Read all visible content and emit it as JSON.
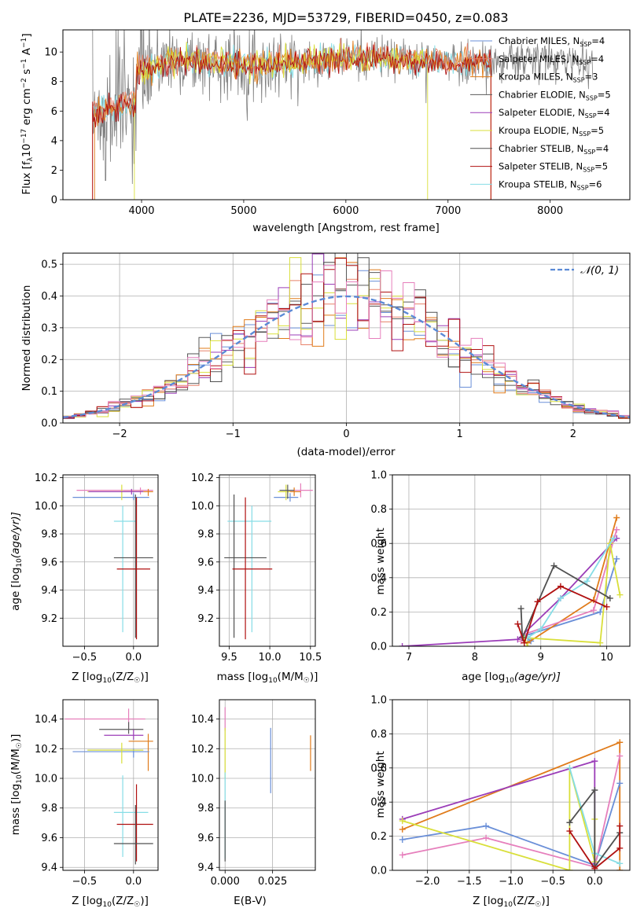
{
  "title": "PLATE=2236, MJD=53729, FIBERID=0450, z=0.083",
  "colors": {
    "chabrier_miles": "#6a8fd8",
    "salpeter_miles": "#e8826a",
    "kroupa_miles": "#e07b1a",
    "chabrier_elodie": "#5a5a5a",
    "salpeter_elodie": "#9b3db8",
    "kroupa_elodie": "#d9df3a",
    "chabrier_stelib": "#505050",
    "salpeter_stelib": "#b01010",
    "kroupa_stelib": "#86dde6",
    "pink": "#e67fbc",
    "normal_curve": "#5b8ad6",
    "data_gray": "#808080"
  },
  "chart_data": [
    {
      "id": "spectrum",
      "type": "line",
      "xlabel": "wavelength [Angstrom, rest frame]",
      "ylabel_main": "Flux [f",
      "ylabel_sub": "λ",
      "ylabel_rest": "10",
      "ylabel_exp1": "−17",
      "ylabel_mid": " erg cm",
      "ylabel_exp2": "−2",
      "ylabel_mid2": " s",
      "ylabel_exp3": "−1",
      "ylabel_end": " A",
      "ylabel_exp4": "−1",
      "ylabel_close": "]",
      "xlim": [
        3230,
        8780
      ],
      "ylim": [
        0,
        11.5
      ],
      "xticks": [
        "4000",
        "5000",
        "6000",
        "7000",
        "8000"
      ],
      "yticks": [
        "0",
        "2",
        "4",
        "6",
        "8",
        "10"
      ],
      "legend": [
        {
          "name": "Chabrier MILES, N",
          "sub": "SSP",
          "eq": "=4",
          "color": "chabrier_miles"
        },
        {
          "name": "Salpeter MILES, N",
          "sub": "SSP",
          "eq": "=4",
          "color": "salpeter_miles"
        },
        {
          "name": "Kroupa MILES, N",
          "sub": "SSP",
          "eq": "=3",
          "color": "kroupa_miles"
        },
        {
          "name": "Chabrier ELODIE, N",
          "sub": "SSP",
          "eq": "=5",
          "color": "chabrier_elodie"
        },
        {
          "name": "Salpeter ELODIE, N",
          "sub": "SSP",
          "eq": "=4",
          "color": "salpeter_elodie"
        },
        {
          "name": "Kroupa ELODIE, N",
          "sub": "SSP",
          "eq": "=5",
          "color": "kroupa_elodie"
        },
        {
          "name": "Chabrier STELIB, N",
          "sub": "SSP",
          "eq": "=4",
          "color": "chabrier_stelib"
        },
        {
          "name": "Salpeter STELIB, N",
          "sub": "SSP",
          "eq": "=5",
          "color": "salpeter_stelib"
        },
        {
          "name": "Kroupa STELIB, N",
          "sub": "SSP",
          "eq": "=6",
          "color": "kroupa_stelib"
        }
      ]
    },
    {
      "id": "residuals",
      "type": "bar",
      "xlabel": "(data-model)/error",
      "ylabel": "Normed distribution",
      "xlim": [
        -2.5,
        2.5
      ],
      "ylim": [
        0,
        0.535
      ],
      "xticks": [
        "−2",
        "−1",
        "0",
        "1",
        "2"
      ],
      "yticks": [
        "0.0",
        "0.1",
        "0.2",
        "0.3",
        "0.4",
        "0.5"
      ],
      "legend_label": "𝒩(0, 1)",
      "bin_width": 0.1
    },
    {
      "id": "age_vs_Z",
      "type": "scatter",
      "xlabel": "Z [log",
      "xlabel_sub": "10",
      "xlabel_rest": "(Z/Z",
      "xlabel_sub2": "☉",
      "xlabel_end": ")]",
      "ylabel": "age  [log",
      "ylabel_sub": "10",
      "ylabel_rest": "(age/yr)]",
      "xlim": [
        -0.72,
        0.25
      ],
      "ylim": [
        9.0,
        10.22
      ],
      "xticks": [
        "−0.5",
        "0.0"
      ],
      "yticks": [
        "9.2",
        "9.4",
        "9.6",
        "9.8",
        "10.0",
        "10.2"
      ]
    },
    {
      "id": "age_vs_mass",
      "type": "scatter",
      "xlabel": "mass [log",
      "xlabel_sub": "10",
      "xlabel_rest": "(M/M",
      "xlabel_sub2": "☉",
      "xlabel_end": ")]",
      "xlim": [
        9.38,
        10.56
      ],
      "ylim": [
        9.0,
        10.22
      ],
      "xticks": [
        "9.5",
        "10.0",
        "10.5"
      ],
      "yticks": [
        "9.2",
        "9.4",
        "9.6",
        "9.8",
        "10.0",
        "10.2"
      ]
    },
    {
      "id": "mass_weight_vs_age",
      "type": "line",
      "xlabel": "age  [log",
      "xlabel_sub": "10",
      "xlabel_rest": "(age/yr)]",
      "ylabel": "mass weight",
      "xlim": [
        6.75,
        10.35
      ],
      "ylim": [
        0,
        1.0
      ],
      "xticks": [
        "7",
        "8",
        "9",
        "10"
      ],
      "yticks": [
        "0.0",
        "0.2",
        "0.4",
        "0.6",
        "0.8",
        "1.0"
      ]
    },
    {
      "id": "mass_vs_Z",
      "type": "scatter",
      "xlabel": "Z [log",
      "xlabel_sub": "10",
      "xlabel_rest": "(Z/Z",
      "xlabel_sub2": "☉",
      "xlabel_end": ")]",
      "ylabel": "mass [log",
      "ylabel_sub": "10",
      "ylabel_rest": "(M/M",
      "ylabel_sub2": "☉",
      "ylabel_end": ")]",
      "xlim": [
        -0.72,
        0.25
      ],
      "ylim": [
        9.38,
        10.53
      ],
      "xticks": [
        "−0.5",
        "0.0"
      ],
      "yticks": [
        "9.4",
        "9.6",
        "9.8",
        "10.0",
        "10.2",
        "10.4"
      ]
    },
    {
      "id": "mass_vs_ebv",
      "type": "scatter",
      "xlabel": "E(B-V)",
      "xlim": [
        -0.003,
        0.0475
      ],
      "ylim": [
        9.38,
        10.53
      ],
      "xticks": [
        "0.000",
        "0.025"
      ],
      "yticks": [
        "9.4",
        "9.6",
        "9.8",
        "10.0",
        "10.2",
        "10.4"
      ]
    },
    {
      "id": "mass_weight_vs_Z",
      "type": "line",
      "xlabel": "Z [log",
      "xlabel_sub": "10",
      "xlabel_rest": "(Z/Z",
      "xlabel_sub2": "☉",
      "xlabel_end": ")]",
      "ylabel": "mass weight",
      "xlim": [
        -2.42,
        0.42
      ],
      "ylim": [
        0,
        1.0
      ],
      "xticks": [
        "−2.0",
        "−1.5",
        "−1.0",
        "−0.5",
        "0.0"
      ],
      "yticks": [
        "0.0",
        "0.2",
        "0.4",
        "0.6",
        "0.8",
        "1.0"
      ]
    }
  ],
  "errbars_age_Z": [
    {
      "c": "chabrier_miles",
      "x": 0.0,
      "xe": [
        -0.62,
        0.16
      ],
      "y": 10.06,
      "ye": [
        10.04,
        10.09
      ]
    },
    {
      "c": "pink",
      "x": 0.07,
      "xe": [
        -0.58,
        0.2
      ],
      "y": 10.11,
      "ye": [
        10.08,
        10.13
      ]
    },
    {
      "c": "kroupa_miles",
      "x": 0.15,
      "xe": [
        -0.1,
        0.2
      ],
      "y": 10.1,
      "ye": [
        10.07,
        10.12
      ]
    },
    {
      "c": "kroupa_elodie",
      "x": -0.12,
      "xe": [
        -0.47,
        0.1
      ],
      "y": 10.1,
      "ye": [
        10.04,
        10.15
      ]
    },
    {
      "c": "salpeter_elodie",
      "x": -0.02,
      "xe": [
        -0.46,
        0.1
      ],
      "y": 10.1,
      "ye": [
        10.08,
        10.12
      ]
    },
    {
      "c": "kroupa_stelib",
      "x": -0.11,
      "xe": [
        -0.2,
        0.03
      ],
      "y": 9.89,
      "ye": [
        9.1,
        10.0
      ]
    },
    {
      "c": "chabrier_stelib",
      "x": 0.02,
      "xe": [
        -0.2,
        0.2
      ],
      "y": 9.63,
      "ye": [
        9.06,
        10.08
      ]
    },
    {
      "c": "salpeter_stelib",
      "x": 0.03,
      "xe": [
        -0.17,
        0.17
      ],
      "y": 9.55,
      "ye": [
        9.05,
        10.06
      ]
    }
  ],
  "errbars_age_mass": [
    {
      "c": "chabrier_miles",
      "x": 10.25,
      "xe": [
        10.05,
        10.35
      ],
      "y": 10.06,
      "ye": [
        10.03,
        10.09
      ]
    },
    {
      "c": "pink",
      "x": 10.38,
      "xe": [
        10.22,
        10.53
      ],
      "y": 10.11,
      "ye": [
        10.06,
        10.16
      ]
    },
    {
      "c": "kroupa_miles",
      "x": 10.3,
      "xe": [
        10.22,
        10.38
      ],
      "y": 10.1,
      "ye": [
        10.07,
        10.13
      ]
    },
    {
      "c": "kroupa_elodie",
      "x": 10.2,
      "xe": [
        10.1,
        10.25
      ],
      "y": 10.1,
      "ye": [
        10.04,
        10.15
      ]
    },
    {
      "c": "chabrier_elodie",
      "x": 10.22,
      "xe": [
        10.12,
        10.3
      ],
      "y": 10.11,
      "ye": [
        10.05,
        10.15
      ]
    },
    {
      "c": "kroupa_stelib",
      "x": 9.78,
      "xe": [
        9.48,
        10.02
      ],
      "y": 9.89,
      "ye": [
        9.1,
        10.0
      ]
    },
    {
      "c": "chabrier_stelib",
      "x": 9.56,
      "xe": [
        9.44,
        9.96
      ],
      "y": 9.63,
      "ye": [
        9.06,
        10.08
      ]
    },
    {
      "c": "salpeter_stelib",
      "x": 9.7,
      "xe": [
        9.54,
        10.03
      ],
      "y": 9.55,
      "ye": [
        9.05,
        10.06
      ]
    }
  ],
  "errbars_mass_Z": [
    {
      "c": "pink",
      "x": -0.05,
      "xe": [
        -0.7,
        0.12
      ],
      "y": 10.4,
      "ye": [
        10.33,
        10.47
      ]
    },
    {
      "c": "chabrier_elodie",
      "x": -0.05,
      "xe": [
        -0.35,
        0.1
      ],
      "y": 10.33,
      "ye": [
        10.3,
        10.38
      ]
    },
    {
      "c": "salpeter_elodie",
      "x": 0.0,
      "xe": [
        -0.3,
        0.1
      ],
      "y": 10.29,
      "ye": [
        10.26,
        10.33
      ]
    },
    {
      "c": "kroupa_miles",
      "x": 0.15,
      "xe": [
        -0.05,
        0.2
      ],
      "y": 10.25,
      "ye": [
        10.05,
        10.3
      ]
    },
    {
      "c": "chabrier_miles",
      "x": 0.0,
      "xe": [
        -0.62,
        0.16
      ],
      "y": 10.18,
      "ye": [
        10.14,
        10.2
      ]
    },
    {
      "c": "kroupa_elodie",
      "x": -0.12,
      "xe": [
        -0.47,
        0.1
      ],
      "y": 10.19,
      "ye": [
        10.1,
        10.24
      ]
    },
    {
      "c": "kroupa_stelib",
      "x": -0.11,
      "xe": [
        -0.2,
        0.15
      ],
      "y": 9.77,
      "ye": [
        9.47,
        10.02
      ]
    },
    {
      "c": "salpeter_stelib",
      "x": 0.03,
      "xe": [
        -0.17,
        0.2
      ],
      "y": 9.69,
      "ye": [
        9.44,
        9.96
      ]
    },
    {
      "c": "chabrier_stelib",
      "x": 0.02,
      "xe": [
        -0.2,
        0.2
      ],
      "y": 9.56,
      "ye": [
        9.42,
        9.82
      ]
    }
  ],
  "errbars_mass_ebv": [
    {
      "c": "pink",
      "x": 0.0,
      "y": 10.4,
      "ye": [
        10.32,
        10.48
      ]
    },
    {
      "c": "kroupa_elodie",
      "x": 0.0,
      "y": 10.18,
      "ye": [
        10.0,
        10.34
      ]
    },
    {
      "c": "chabrier_miles",
      "x": 0.024,
      "y": 10.12,
      "ye": [
        9.9,
        10.34
      ]
    },
    {
      "c": "kroupa_miles",
      "x": 0.045,
      "y": 10.16,
      "ye": [
        10.05,
        10.29
      ]
    },
    {
      "c": "kroupa_stelib",
      "x": 0.0,
      "y": 9.75,
      "ye": [
        9.46,
        10.04
      ]
    },
    {
      "c": "chabrier_stelib",
      "x": 0.0,
      "y": 9.6,
      "ye": [
        9.44,
        9.85
      ]
    }
  ],
  "mw_age": [
    {
      "c": "salpeter_elodie",
      "pts": [
        [
          6.9,
          0.0
        ],
        [
          8.65,
          0.04
        ],
        [
          9.3,
          0.28
        ],
        [
          10.15,
          0.63
        ]
      ]
    },
    {
      "c": "chabrier_miles",
      "pts": [
        [
          8.85,
          0.03
        ],
        [
          8.75,
          0.06
        ],
        [
          9.9,
          0.2
        ],
        [
          10.15,
          0.51
        ]
      ]
    },
    {
      "c": "kroupa_miles",
      "pts": [
        [
          8.8,
          0.02
        ],
        [
          9.8,
          0.27
        ],
        [
          10.15,
          0.75
        ]
      ]
    },
    {
      "c": "pink",
      "pts": [
        [
          8.7,
          0.03
        ],
        [
          8.75,
          0.07
        ],
        [
          9.8,
          0.21
        ],
        [
          10.15,
          0.68
        ]
      ]
    },
    {
      "c": "kroupa_elodie",
      "pts": [
        [
          8.8,
          0.0
        ],
        [
          8.75,
          0.05
        ],
        [
          9.9,
          0.02
        ],
        [
          10.05,
          0.6
        ],
        [
          10.2,
          0.3
        ]
      ]
    },
    {
      "c": "kroupa_stelib",
      "pts": [
        [
          8.8,
          0.05
        ],
        [
          9.0,
          0.1
        ],
        [
          9.3,
          0.28
        ],
        [
          9.7,
          0.38
        ],
        [
          10.1,
          0.63
        ]
      ]
    },
    {
      "c": "chabrier_stelib",
      "pts": [
        [
          8.7,
          0.22
        ],
        [
          8.72,
          0.05
        ],
        [
          9.2,
          0.47
        ],
        [
          10.05,
          0.28
        ]
      ]
    },
    {
      "c": "salpeter_stelib",
      "pts": [
        [
          8.65,
          0.13
        ],
        [
          8.75,
          0.02
        ],
        [
          8.95,
          0.26
        ],
        [
          9.3,
          0.35
        ],
        [
          10.0,
          0.23
        ]
      ]
    }
  ],
  "mw_Z": [
    {
      "c": "kroupa_miles",
      "pts": [
        [
          -2.3,
          0.24
        ],
        [
          0.3,
          0.75
        ],
        [
          0.3,
          0.0
        ]
      ]
    },
    {
      "c": "salpeter_elodie",
      "pts": [
        [
          -2.3,
          0.3
        ],
        [
          0.0,
          0.64
        ],
        [
          0.0,
          0.04
        ]
      ]
    },
    {
      "c": "chabrier_miles",
      "pts": [
        [
          -2.3,
          0.18
        ],
        [
          -1.3,
          0.26
        ],
        [
          0.0,
          0.03
        ],
        [
          0.3,
          0.51
        ]
      ]
    },
    {
      "c": "pink",
      "pts": [
        [
          -2.3,
          0.09
        ],
        [
          -1.3,
          0.19
        ],
        [
          0.0,
          0.02
        ],
        [
          0.3,
          0.67
        ]
      ]
    },
    {
      "c": "kroupa_elodie",
      "pts": [
        [
          -2.3,
          0.29
        ],
        [
          -0.3,
          0.0
        ],
        [
          -0.3,
          0.6
        ],
        [
          0.0,
          0.05
        ],
        [
          0.0,
          0.3
        ]
      ]
    },
    {
      "c": "kroupa_stelib",
      "pts": [
        [
          -0.3,
          0.6
        ],
        [
          0.0,
          0.1
        ],
        [
          0.3,
          0.04
        ]
      ]
    },
    {
      "c": "chabrier_stelib",
      "pts": [
        [
          -0.3,
          0.28
        ],
        [
          0.0,
          0.47
        ],
        [
          0.0,
          0.02
        ],
        [
          0.3,
          0.22
        ]
      ]
    },
    {
      "c": "salpeter_stelib",
      "pts": [
        [
          -0.3,
          0.23
        ],
        [
          0.0,
          0.01
        ],
        [
          0.3,
          0.13
        ],
        [
          0.3,
          0.26
        ]
      ]
    }
  ]
}
